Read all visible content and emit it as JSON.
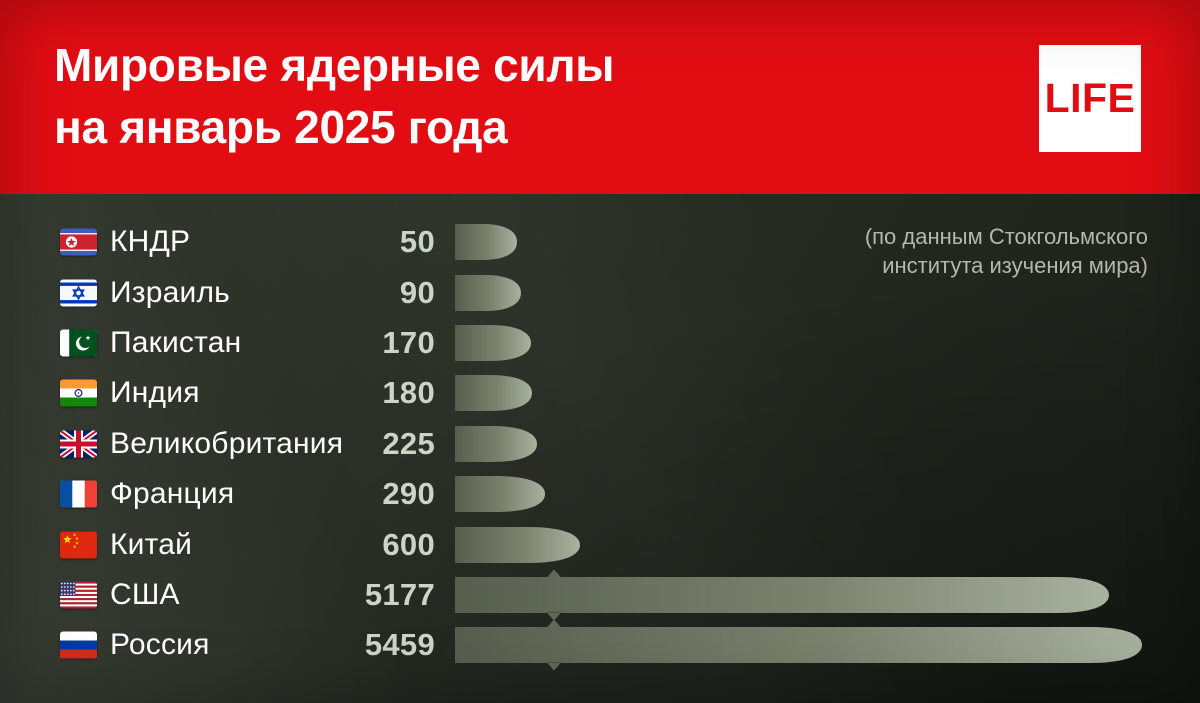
{
  "header": {
    "title_line1": "Мировые ядерные силы",
    "title_line2": "на январь 2025 года",
    "logo_text": "LIFE"
  },
  "source_note": {
    "line1": "(по данным Стокгольмского",
    "line2": "института изучения мира)"
  },
  "colors": {
    "header_red": "#e20d13",
    "logo_red": "#e20d13",
    "background_dark": "#23271f",
    "bar_gradient_start": "#575e4e",
    "bar_gradient_mid": "#7b836f",
    "bar_gradient_end": "#a9b29f",
    "value_text": "#ccd5c5",
    "name_text": "#ffffff",
    "note_text": "#b2baab"
  },
  "chart_data": {
    "type": "bar",
    "orientation": "horizontal",
    "title": "Мировые ядерные силы на январь 2025 года",
    "source": "(по данным Стокгольмского института изучения мира)",
    "legend": "none",
    "grid": false,
    "bar_style": "missile-silhouette",
    "xlim": [
      0,
      5459
    ],
    "categories": [
      "КНДР",
      "Израиль",
      "Пакистан",
      "Индия",
      "Великобритания",
      "Франция",
      "Китай",
      "США",
      "Россия"
    ],
    "values": [
      50,
      90,
      170,
      180,
      225,
      290,
      600,
      5177,
      5459
    ],
    "rows": [
      {
        "flag": "kp",
        "name": "КНДР",
        "value": 50
      },
      {
        "flag": "il",
        "name": "Израиль",
        "value": 90
      },
      {
        "flag": "pk",
        "name": "Пакистан",
        "value": 170
      },
      {
        "flag": "in",
        "name": "Индия",
        "value": 180
      },
      {
        "flag": "gb",
        "name": "Великобритания",
        "value": 225
      },
      {
        "flag": "fr",
        "name": "Франция",
        "value": 290
      },
      {
        "flag": "cn",
        "name": "Китай",
        "value": 600
      },
      {
        "flag": "us",
        "name": "США",
        "value": 5177,
        "missile_fins": true
      },
      {
        "flag": "ru",
        "name": "Россия",
        "value": 5459,
        "missile_fins": true
      }
    ]
  }
}
